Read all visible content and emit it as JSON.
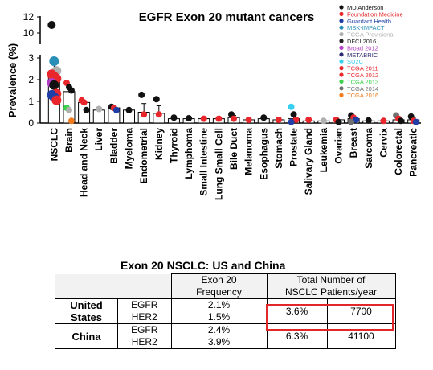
{
  "chart_data": {
    "type": "bar",
    "title": "EGFR Exon 20 mutant cancers",
    "ylabel": "Prevalence (%)",
    "y_ticks_lower": [
      "0",
      "1",
      "2",
      "3"
    ],
    "y_ticks_upper": [
      "10",
      "12"
    ],
    "y_axis_break": true,
    "categories": [
      "NSCLC",
      "Brain",
      "Head and Neck",
      "Liver",
      "Bladder",
      "Myeloma",
      "Endometrial",
      "Kidney",
      "Thyroid",
      "Lymphoma",
      "Small Intestine",
      "Lung Small Cell",
      "Bile Duct",
      "Melanoma",
      "Esophagus",
      "Stomach",
      "Prostate",
      "Salivary Gland",
      "Leukemia",
      "Ovarian",
      "Breast",
      "Sarcoma",
      "Cervix",
      "Colorectal",
      "Pancreatic"
    ],
    "values": [
      2.1,
      1.45,
      0.95,
      0.6,
      0.7,
      0.6,
      0.5,
      0.45,
      0.2,
      0.2,
      0.2,
      0.2,
      0.25,
      0.15,
      0.2,
      0.15,
      0.2,
      0.1,
      0.1,
      0.15,
      0.2,
      0.1,
      0.1,
      0.15,
      0.15
    ],
    "errors": [
      0.75,
      0.2,
      0,
      0,
      0.1,
      0,
      0.4,
      0.35,
      0,
      0,
      0,
      0,
      0.1,
      0,
      0,
      0,
      0.12,
      0,
      0,
      0,
      0.08,
      0,
      0,
      0.08,
      0.08
    ],
    "legend_position": "top-right",
    "legend": [
      {
        "name": "MD Anderson",
        "color": "#111111"
      },
      {
        "name": "Foundation Medicine",
        "color": "#e8262b"
      },
      {
        "name": "Guardant Health",
        "color": "#1f3ea6"
      },
      {
        "name": "MSK-IMPACT",
        "color": "#2a8fb8"
      },
      {
        "name": "TCGA Provisional",
        "color": "#b0b0b0"
      },
      {
        "name": "DFCI 2016",
        "color": "#222222"
      },
      {
        "name": "Broad 2012",
        "color": "#b43fc6"
      },
      {
        "name": "METABRIC",
        "color": "#2c2c6e"
      },
      {
        "name": "SU2C",
        "color": "#38d0f0"
      },
      {
        "name": "TCGA 2011",
        "color": "#e8262b"
      },
      {
        "name": "TCGA 2012",
        "color": "#e8262b"
      },
      {
        "name": "TCGA 2013",
        "color": "#3cd14a"
      },
      {
        "name": "TCGA 2014",
        "color": "#707070"
      },
      {
        "name": "TCGA 2016",
        "color": "#f07c1e"
      }
    ],
    "points": [
      [
        [
          11.0,
          0
        ],
        [
          2.85,
          3
        ],
        [
          2.4,
          4
        ],
        [
          2.25,
          1
        ],
        [
          2.15,
          1
        ],
        [
          2.05,
          1
        ],
        [
          1.85,
          6
        ],
        [
          1.75,
          0
        ],
        [
          1.35,
          1
        ],
        [
          1.3,
          2
        ],
        [
          1.2,
          2
        ],
        [
          1.05,
          10
        ]
      ],
      [
        [
          1.85,
          1
        ],
        [
          1.65,
          0
        ],
        [
          1.5,
          0
        ],
        [
          0.7,
          11
        ],
        [
          0.6,
          4
        ],
        [
          0.1,
          13
        ]
      ],
      [
        [
          1.05,
          1
        ],
        [
          0.95,
          1
        ],
        [
          0.6,
          0
        ]
      ],
      [
        [
          0.65,
          4
        ]
      ],
      [
        [
          0.75,
          0
        ],
        [
          0.7,
          1
        ],
        [
          0.6,
          2
        ]
      ],
      [
        [
          0.6,
          0
        ]
      ],
      [
        [
          1.3,
          0
        ],
        [
          0.4,
          1
        ]
      ],
      [
        [
          1.1,
          0
        ],
        [
          0.4,
          1
        ]
      ],
      [
        [
          0.25,
          0
        ]
      ],
      [
        [
          0.22,
          0
        ]
      ],
      [
        [
          0.2,
          1
        ]
      ],
      [
        [
          0.2,
          1
        ]
      ],
      [
        [
          0.4,
          0
        ],
        [
          0.2,
          1
        ]
      ],
      [
        [
          0.15,
          1
        ]
      ],
      [
        [
          0.25,
          0
        ]
      ],
      [
        [
          0.15,
          1
        ]
      ],
      [
        [
          0.75,
          8
        ],
        [
          0.4,
          0
        ],
        [
          0.15,
          1
        ],
        [
          0.05,
          2
        ]
      ],
      [
        [
          0.15,
          1
        ]
      ],
      [
        [
          0.1,
          4
        ]
      ],
      [
        [
          0.15,
          1
        ],
        [
          0.05,
          0
        ]
      ],
      [
        [
          0.35,
          0
        ],
        [
          0.25,
          1
        ],
        [
          0.15,
          2
        ],
        [
          0.05,
          12
        ]
      ],
      [
        [
          0.12,
          0
        ]
      ],
      [
        [
          0.1,
          1
        ]
      ],
      [
        [
          0.35,
          12
        ],
        [
          0.2,
          1
        ],
        [
          0.1,
          0
        ]
      ],
      [
        [
          0.3,
          0
        ],
        [
          0.1,
          1
        ],
        [
          0.05,
          2
        ]
      ]
    ]
  },
  "table": {
    "title": "Exon 20 NSCLC: US and China",
    "header_freq_l1": "Exon 20",
    "header_freq_l2": "Frequency",
    "header_total_l1": "Total  Number of",
    "header_total_l2": "NSCLC Patients/year",
    "rows": [
      {
        "country_l1": "United",
        "country_l2": "States",
        "gene_1": "EGFR",
        "gene_2": "HER2",
        "freq_1": "2.1%",
        "freq_2": "1.5%",
        "total": "3.6%",
        "patients": "7700"
      },
      {
        "country_l1": "China",
        "country_l2": "",
        "gene_1": "EGFR",
        "gene_2": "HER2",
        "freq_1": "2.4%",
        "freq_2": "3.9%",
        "total": "6.3%",
        "patients": "41100"
      }
    ],
    "highlight_color": "#e0272a"
  }
}
